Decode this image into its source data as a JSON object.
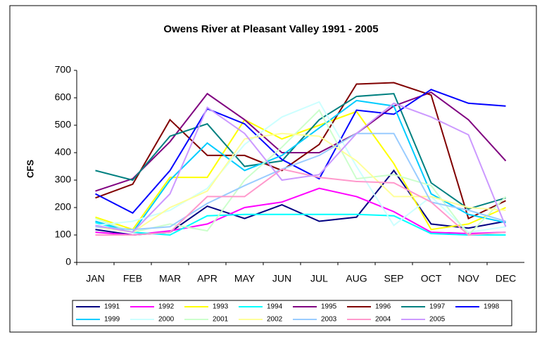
{
  "chart_data": {
    "type": "line",
    "title": "Owens River at Pleasant Valley 1991 - 2005",
    "y_label": "CFS",
    "categories": [
      "JAN",
      "FEB",
      "MAR",
      "APR",
      "MAY",
      "JUN",
      "JUL",
      "AUG",
      "SEP",
      "OCT",
      "NOV",
      "DEC"
    ],
    "ylim": [
      0,
      700
    ],
    "yticks": [
      0,
      100,
      200,
      300,
      400,
      500,
      600,
      700
    ],
    "series": [
      {
        "name": "1991",
        "color": "#000080",
        "values": [
          120,
          100,
          110,
          205,
          160,
          210,
          150,
          165,
          335,
          140,
          125,
          150
        ]
      },
      {
        "name": "1992",
        "color": "#ff00ff",
        "values": [
          110,
          100,
          115,
          140,
          200,
          220,
          270,
          240,
          185,
          110,
          105,
          110
        ]
      },
      {
        "name": "1993",
        "color": "#ffff00",
        "values": [
          165,
          120,
          310,
          310,
          520,
          450,
          500,
          550,
          360,
          120,
          140,
          200
        ]
      },
      {
        "name": "1994",
        "color": "#00ffff",
        "values": [
          145,
          110,
          100,
          170,
          175,
          175,
          175,
          175,
          170,
          105,
          100,
          100
        ]
      },
      {
        "name": "1995",
        "color": "#800080",
        "values": [
          260,
          305,
          440,
          615,
          520,
          400,
          400,
          470,
          570,
          620,
          520,
          370
        ]
      },
      {
        "name": "1996",
        "color": "#800000",
        "values": [
          235,
          285,
          520,
          390,
          390,
          335,
          430,
          650,
          655,
          610,
          160,
          225
        ]
      },
      {
        "name": "1997",
        "color": "#008080",
        "values": [
          335,
          300,
          460,
          505,
          350,
          370,
          520,
          605,
          615,
          290,
          195,
          235
        ]
      },
      {
        "name": "1998",
        "color": "#0000ff",
        "values": [
          250,
          180,
          335,
          560,
          505,
          375,
          305,
          555,
          540,
          630,
          580,
          570
        ]
      },
      {
        "name": "1999",
        "color": "#00ccff",
        "values": [
          150,
          110,
          300,
          435,
          335,
          390,
          490,
          590,
          570,
          250,
          175,
          145
        ]
      },
      {
        "name": "2000",
        "color": "#ccffff",
        "values": [
          135,
          150,
          190,
          270,
          430,
          530,
          585,
          350,
          135,
          240,
          110,
          130
        ]
      },
      {
        "name": "2001",
        "color": "#ccffcc",
        "values": [
          160,
          110,
          140,
          115,
          300,
          420,
          555,
          305,
          320,
          280,
          100,
          240
        ]
      },
      {
        "name": "2002",
        "color": "#ffff99",
        "values": [
          130,
          110,
          200,
          260,
          450,
          470,
          460,
          370,
          240,
          240,
          200,
          190
        ]
      },
      {
        "name": "2003",
        "color": "#99ccff",
        "values": [
          130,
          120,
          130,
          215,
          280,
          340,
          390,
          470,
          470,
          220,
          190,
          150
        ]
      },
      {
        "name": "2004",
        "color": "#ff99cc",
        "values": [
          100,
          100,
          110,
          240,
          240,
          340,
          310,
          295,
          290,
          220,
          100,
          110
        ]
      },
      {
        "name": "2005",
        "color": "#cc99ff",
        "values": [
          135,
          110,
          250,
          565,
          470,
          300,
          320,
          470,
          580,
          530,
          465,
          130
        ]
      }
    ]
  }
}
